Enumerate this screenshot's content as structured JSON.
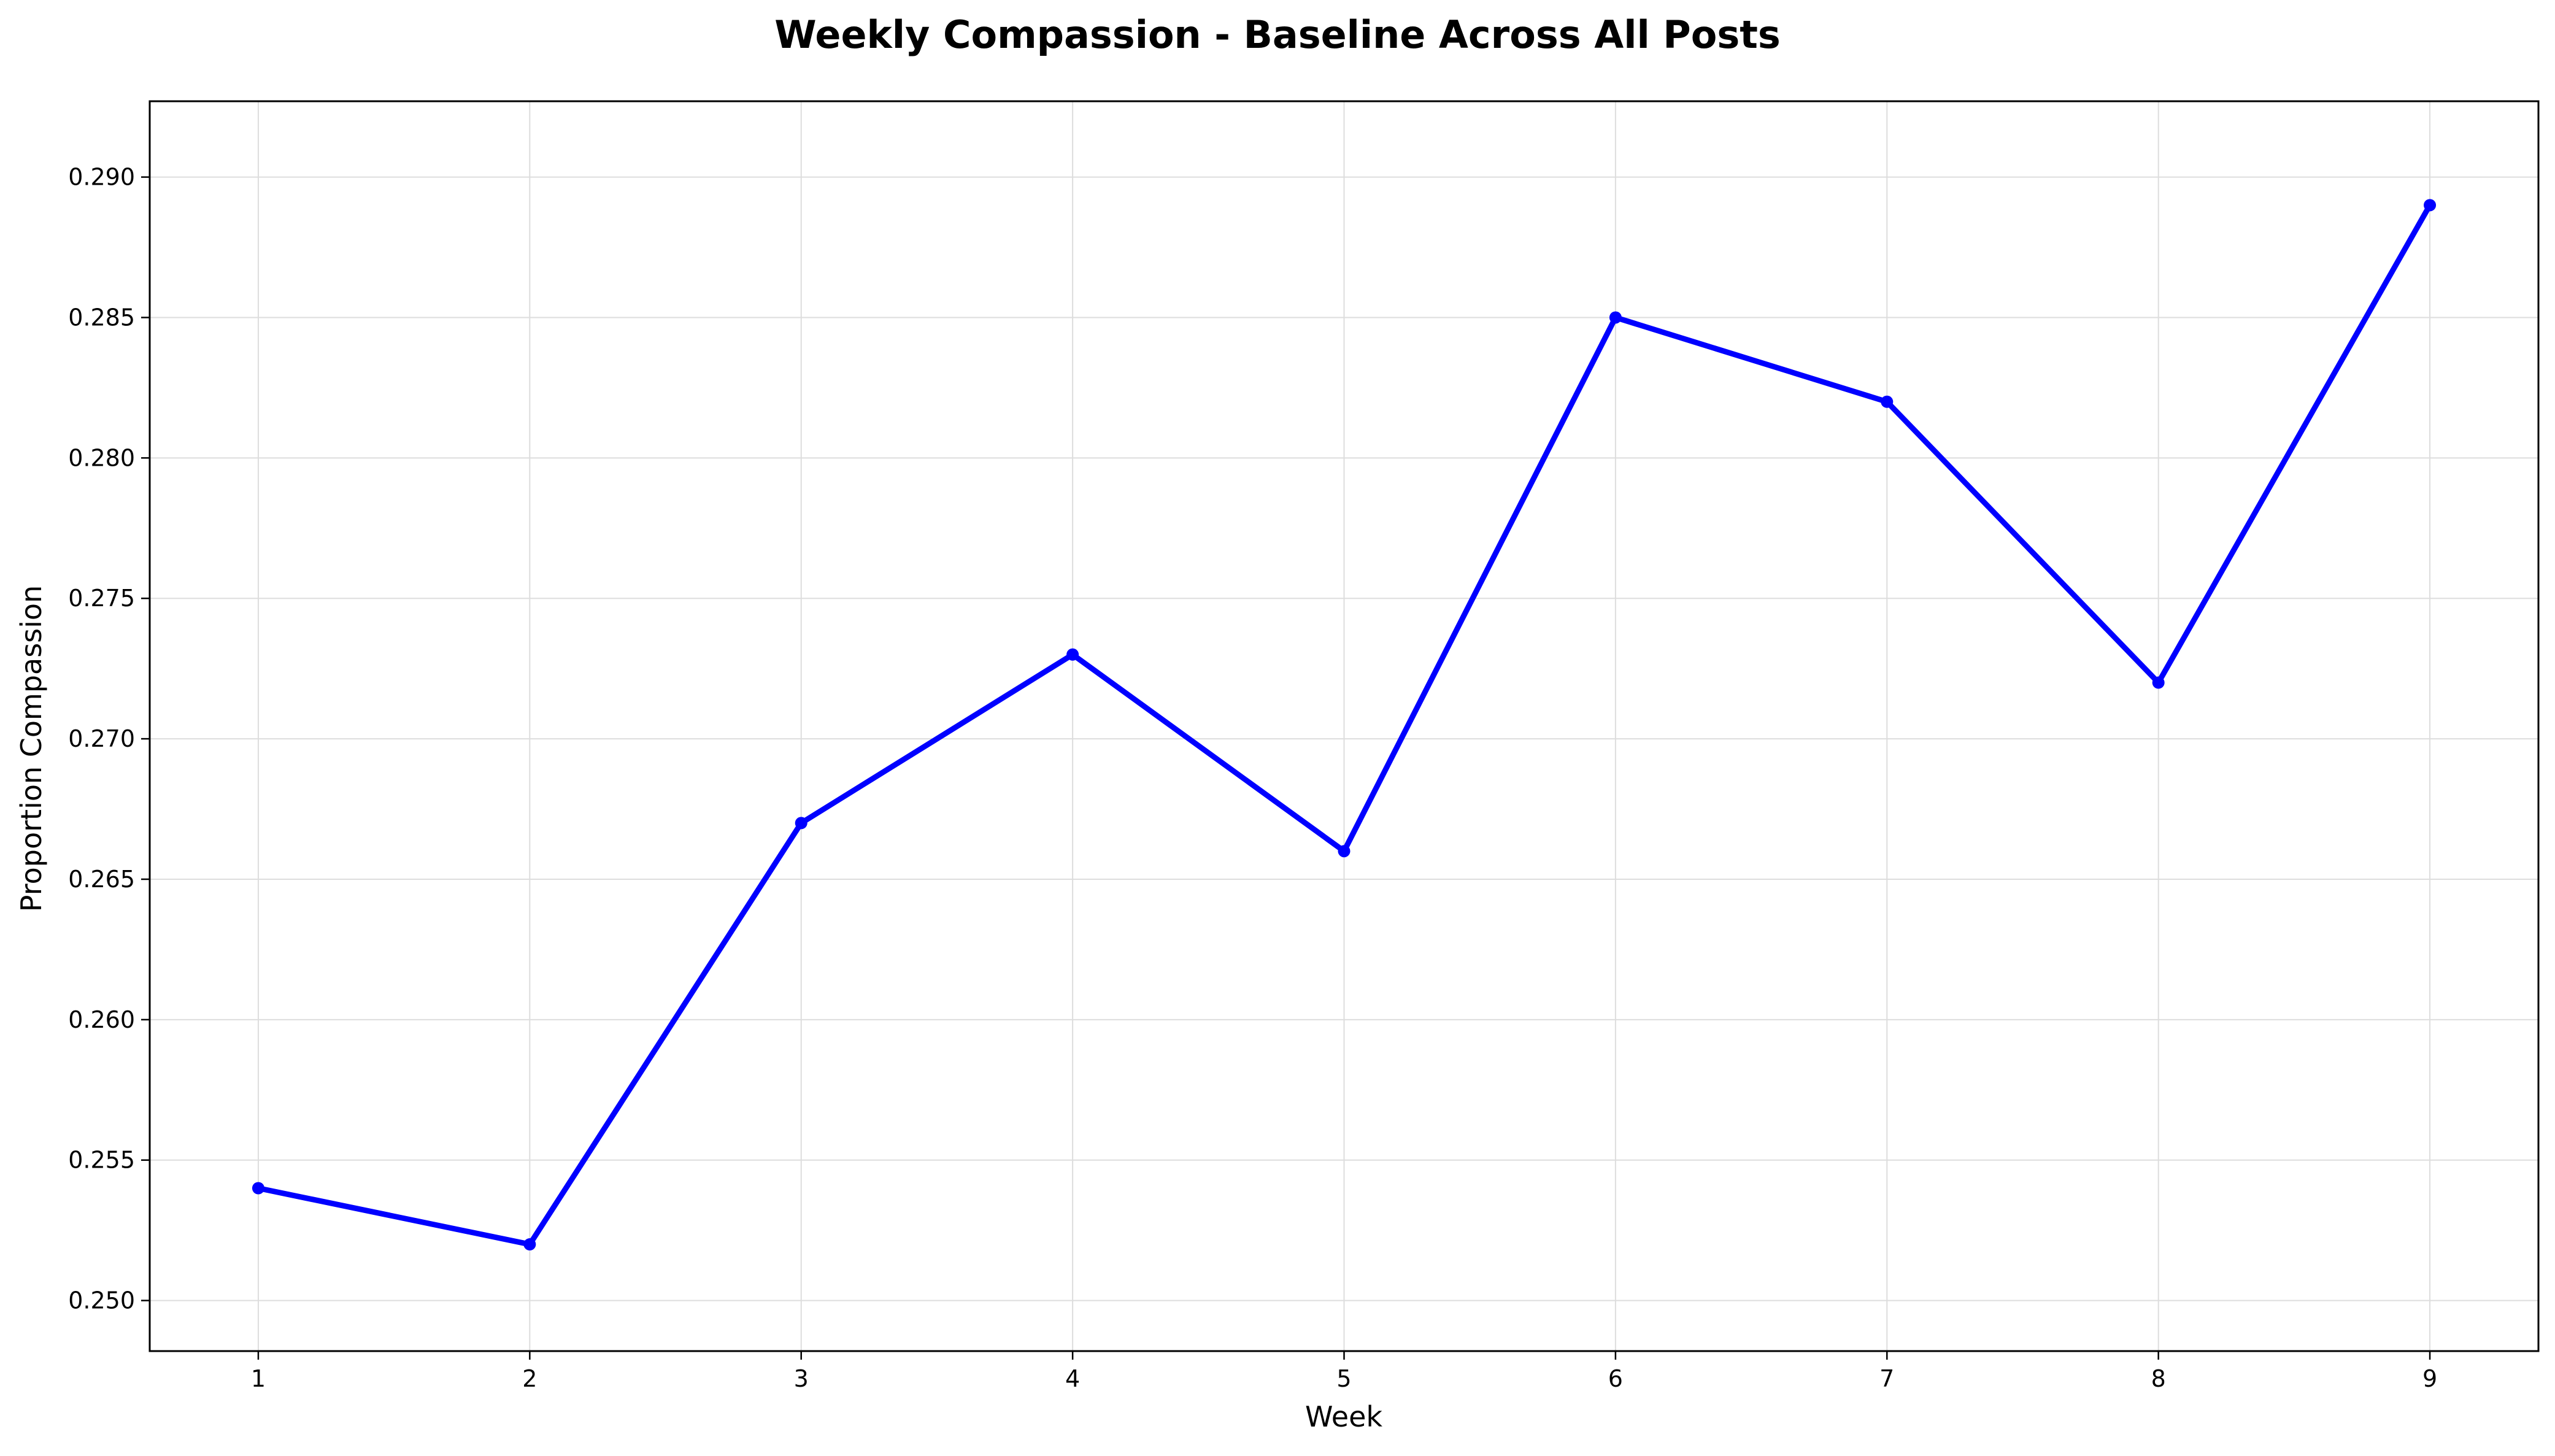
{
  "chart_data": {
    "type": "line",
    "title": "Weekly Compassion - Baseline Across All Posts",
    "xlabel": "Week",
    "ylabel": "Proportion Compassion",
    "x": [
      1,
      2,
      3,
      4,
      5,
      6,
      7,
      8,
      9
    ],
    "series": [
      {
        "values": [
          0.254,
          0.252,
          0.267,
          0.273,
          0.266,
          0.285,
          0.282,
          0.272,
          0.289
        ],
        "color": "#0000ff",
        "marker": "circle"
      }
    ],
    "xlim": [
      0.6,
      9.4
    ],
    "ylim": [
      0.2482,
      0.2927
    ],
    "xticks": [
      1,
      2,
      3,
      4,
      5,
      6,
      7,
      8,
      9
    ],
    "xtick_labels": [
      "1",
      "2",
      "3",
      "4",
      "5",
      "6",
      "7",
      "8",
      "9"
    ],
    "yticks": [
      0.25,
      0.255,
      0.26,
      0.265,
      0.27,
      0.275,
      0.28,
      0.285,
      0.29
    ],
    "ytick_labels": [
      "0.250",
      "0.255",
      "0.260",
      "0.265",
      "0.270",
      "0.275",
      "0.280",
      "0.285",
      "0.290"
    ],
    "grid": true,
    "legend": false
  }
}
